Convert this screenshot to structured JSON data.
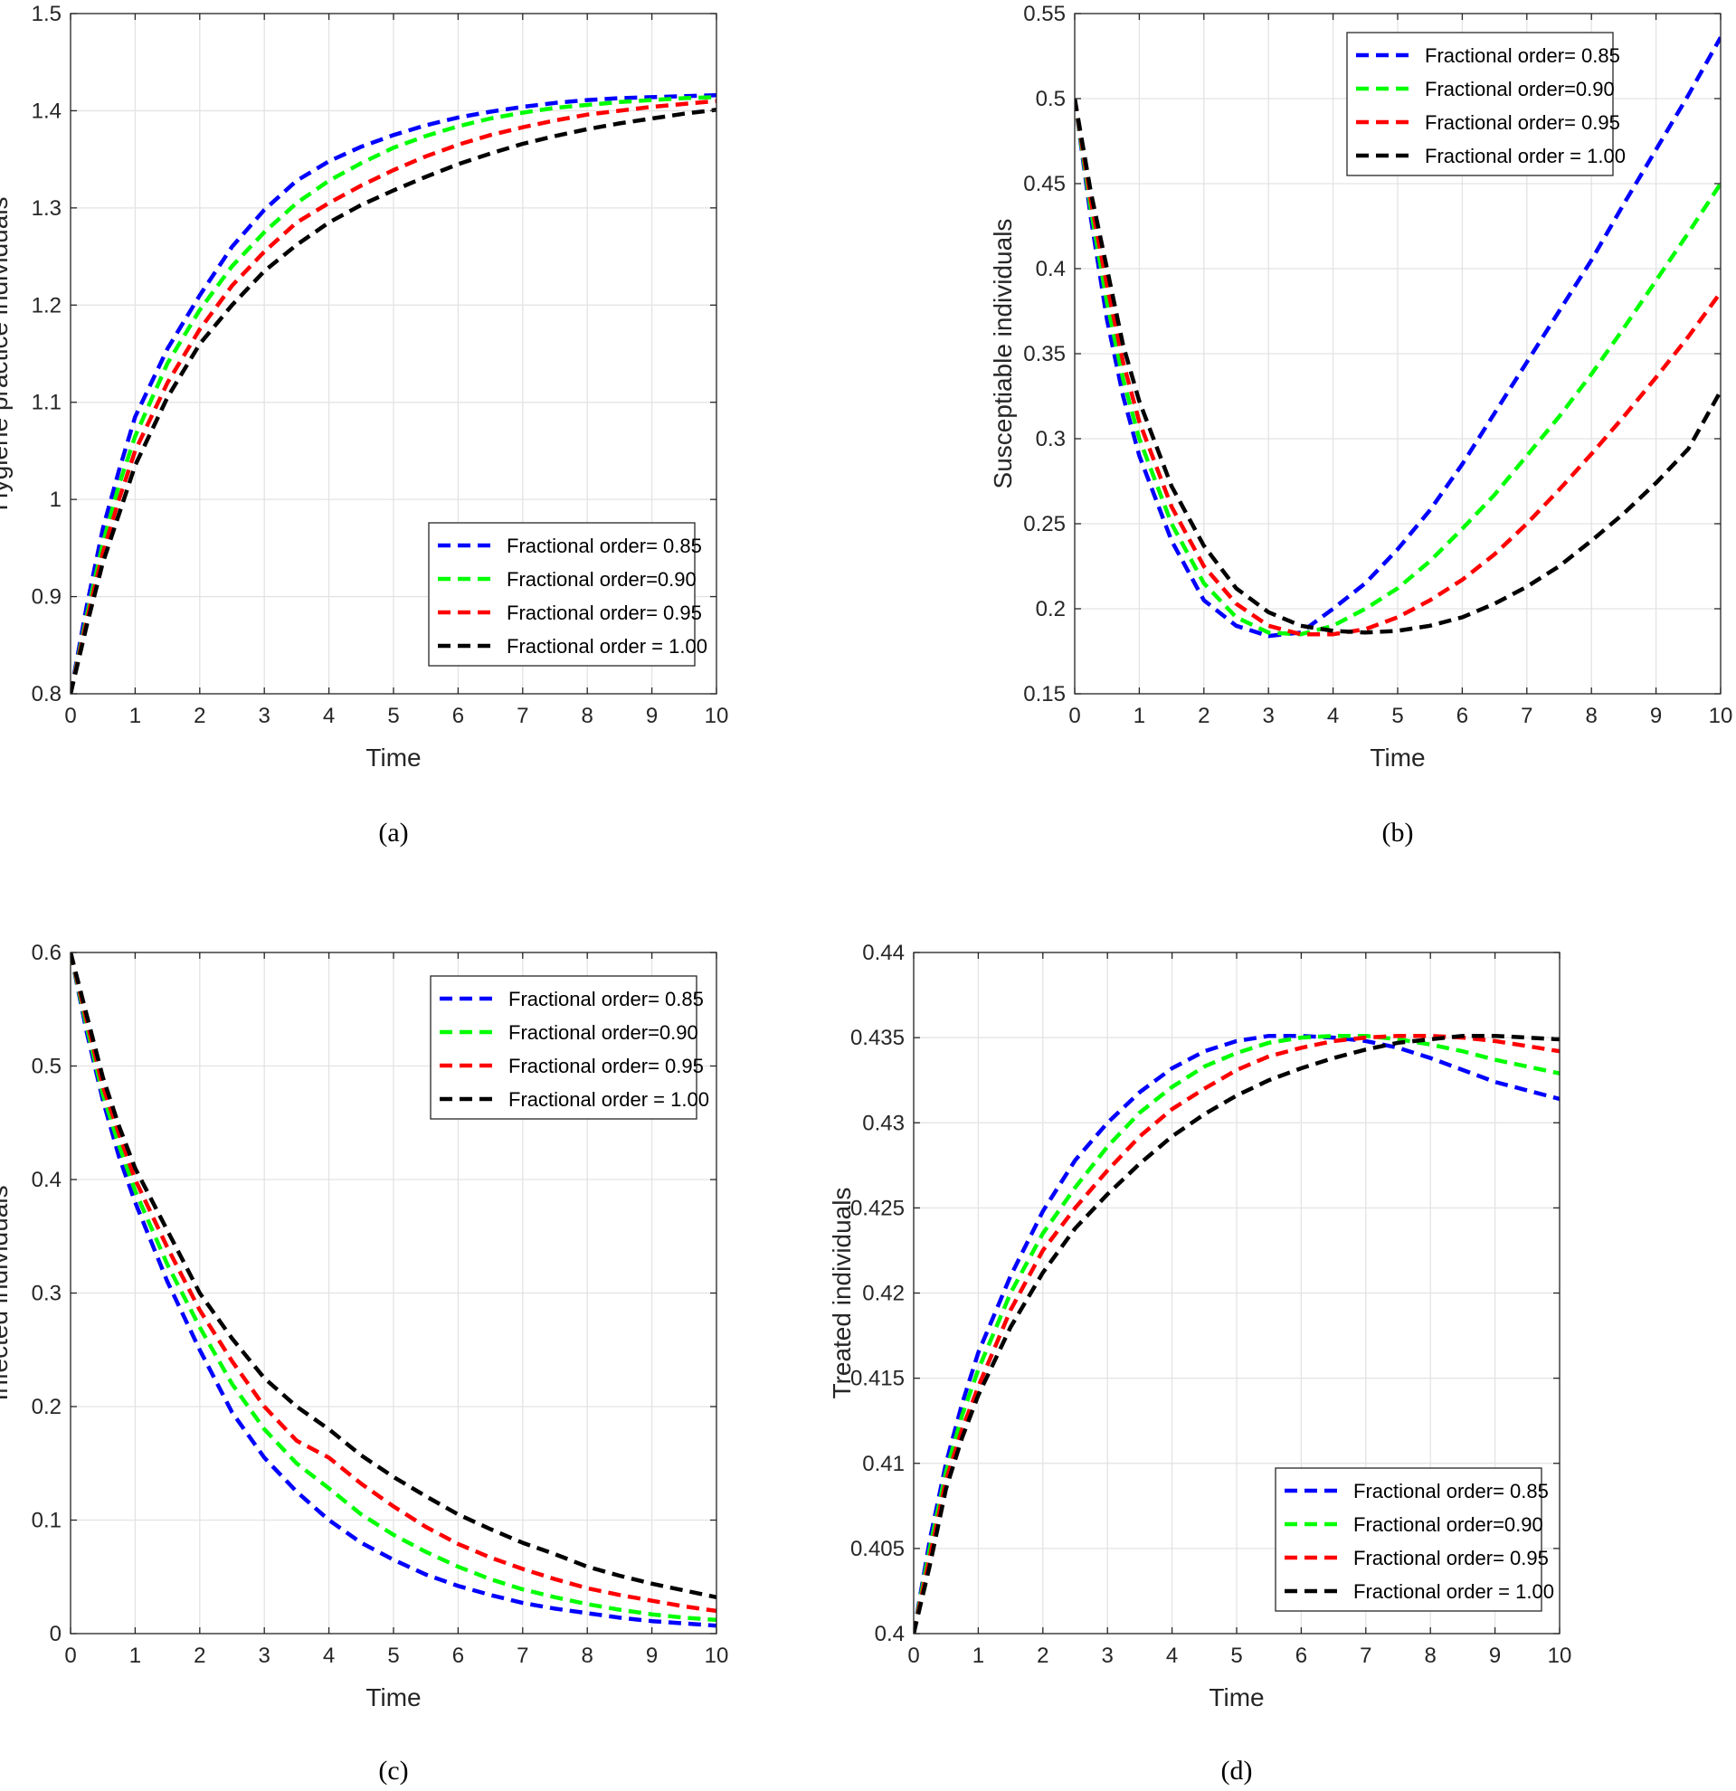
{
  "chart_data": [
    {
      "type": "line",
      "caption": "(a)",
      "xlabel": "Time",
      "ylabel": "Hygiene practice individuals",
      "xlim": [
        0,
        10
      ],
      "ylim": [
        0.8,
        1.5
      ],
      "xticks": [
        "0",
        "1",
        "2",
        "3",
        "4",
        "5",
        "6",
        "7",
        "8",
        "9",
        "10"
      ],
      "yticks": [
        "0.8",
        "0.9",
        "1",
        "1.1",
        "1.2",
        "1.3",
        "1.4",
        "1.5"
      ],
      "grid": true,
      "legend_position": "bottom-right",
      "x": [
        0,
        0.25,
        0.5,
        0.75,
        1,
        1.5,
        2,
        2.5,
        3,
        3.5,
        4,
        4.5,
        5,
        5.5,
        6,
        6.5,
        7,
        7.5,
        8,
        8.5,
        9,
        9.5,
        10
      ],
      "series": [
        {
          "name": "Fractional order= 0.85",
          "color": "#0000ff",
          "values": [
            0.8,
            0.89,
            0.97,
            1.03,
            1.085,
            1.155,
            1.21,
            1.26,
            1.298,
            1.328,
            1.348,
            1.363,
            1.375,
            1.385,
            1.393,
            1.399,
            1.404,
            1.408,
            1.411,
            1.413,
            1.414,
            1.415,
            1.416
          ]
        },
        {
          "name": "Fractional order=0.90",
          "color": "#00ff00",
          "values": [
            0.8,
            0.88,
            0.955,
            1.015,
            1.065,
            1.14,
            1.195,
            1.24,
            1.275,
            1.305,
            1.328,
            1.346,
            1.362,
            1.374,
            1.384,
            1.392,
            1.398,
            1.403,
            1.406,
            1.409,
            1.411,
            1.413,
            1.414
          ]
        },
        {
          "name": "Fractional order= 0.95",
          "color": "#ff0000",
          "values": [
            0.8,
            0.875,
            0.945,
            1.0,
            1.05,
            1.12,
            1.175,
            1.22,
            1.255,
            1.285,
            1.305,
            1.323,
            1.339,
            1.353,
            1.365,
            1.375,
            1.383,
            1.39,
            1.396,
            1.4,
            1.404,
            1.407,
            1.41
          ]
        },
        {
          "name": "Fractional order = 1.00",
          "color": "#000000",
          "values": [
            0.8,
            0.87,
            0.935,
            0.985,
            1.035,
            1.105,
            1.16,
            1.2,
            1.235,
            1.262,
            1.285,
            1.303,
            1.318,
            1.332,
            1.345,
            1.356,
            1.366,
            1.374,
            1.381,
            1.387,
            1.392,
            1.397,
            1.401
          ]
        }
      ]
    },
    {
      "type": "line",
      "caption": "(b)",
      "xlabel": "Time",
      "ylabel": "Susceptiable individuals",
      "xlim": [
        0,
        10
      ],
      "ylim": [
        0.15,
        0.55
      ],
      "xticks": [
        "0",
        "1",
        "2",
        "3",
        "4",
        "5",
        "6",
        "7",
        "8",
        "9",
        "10"
      ],
      "yticks": [
        "0.15",
        "0.2",
        "0.25",
        "0.3",
        "0.35",
        "0.4",
        "0.45",
        "0.5",
        "0.55"
      ],
      "grid": true,
      "legend_position": "top-right",
      "x": [
        0,
        0.25,
        0.5,
        0.75,
        1,
        1.5,
        2,
        2.5,
        3,
        3.5,
        4,
        4.5,
        5,
        5.5,
        6,
        6.5,
        7,
        7.5,
        8,
        8.5,
        9,
        9.5,
        10
      ],
      "series": [
        {
          "name": "Fractional order= 0.85",
          "color": "#0000ff",
          "values": [
            0.5,
            0.43,
            0.37,
            0.325,
            0.29,
            0.24,
            0.205,
            0.19,
            0.184,
            0.186,
            0.2,
            0.215,
            0.235,
            0.258,
            0.285,
            0.315,
            0.345,
            0.375,
            0.405,
            0.438,
            0.47,
            0.502,
            0.536
          ]
        },
        {
          "name": "Fractional order=0.90",
          "color": "#00ff00",
          "values": [
            0.5,
            0.435,
            0.38,
            0.335,
            0.3,
            0.25,
            0.215,
            0.195,
            0.186,
            0.185,
            0.19,
            0.2,
            0.212,
            0.228,
            0.247,
            0.267,
            0.29,
            0.313,
            0.338,
            0.365,
            0.393,
            0.421,
            0.45
          ]
        },
        {
          "name": "Fractional order= 0.95",
          "color": "#ff0000",
          "values": [
            0.5,
            0.44,
            0.39,
            0.345,
            0.31,
            0.26,
            0.225,
            0.203,
            0.19,
            0.185,
            0.185,
            0.188,
            0.195,
            0.205,
            0.217,
            0.232,
            0.25,
            0.27,
            0.291,
            0.313,
            0.336,
            0.36,
            0.386
          ]
        },
        {
          "name": "Fractional order = 1.00",
          "color": "#000000",
          "values": [
            0.5,
            0.445,
            0.4,
            0.355,
            0.322,
            0.272,
            0.237,
            0.212,
            0.198,
            0.19,
            0.187,
            0.186,
            0.187,
            0.19,
            0.195,
            0.203,
            0.213,
            0.225,
            0.24,
            0.256,
            0.274,
            0.294,
            0.328
          ]
        }
      ]
    },
    {
      "type": "line",
      "caption": "(c)",
      "xlabel": "Time",
      "ylabel": "Infected individuals",
      "xlim": [
        0,
        10
      ],
      "ylim": [
        0,
        0.6
      ],
      "xticks": [
        "0",
        "1",
        "2",
        "3",
        "4",
        "5",
        "6",
        "7",
        "8",
        "9",
        "10"
      ],
      "yticks": [
        "0",
        "0.1",
        "0.2",
        "0.3",
        "0.4",
        "0.5",
        "0.6"
      ],
      "grid": true,
      "legend_position": "top-right",
      "x": [
        0,
        0.25,
        0.5,
        0.75,
        1,
        1.5,
        2,
        2.5,
        3,
        3.5,
        4,
        4.5,
        5,
        5.5,
        6,
        6.5,
        7,
        7.5,
        8,
        8.5,
        9,
        9.5,
        10
      ],
      "series": [
        {
          "name": "Fractional order= 0.85",
          "color": "#0000ff",
          "values": [
            0.6,
            0.53,
            0.47,
            0.42,
            0.38,
            0.31,
            0.25,
            0.195,
            0.155,
            0.125,
            0.1,
            0.08,
            0.065,
            0.052,
            0.042,
            0.034,
            0.027,
            0.022,
            0.018,
            0.014,
            0.011,
            0.009,
            0.007
          ]
        },
        {
          "name": "Fractional order=0.90",
          "color": "#00ff00",
          "values": [
            0.6,
            0.535,
            0.475,
            0.43,
            0.39,
            0.325,
            0.27,
            0.22,
            0.18,
            0.15,
            0.128,
            0.105,
            0.087,
            0.072,
            0.059,
            0.048,
            0.039,
            0.032,
            0.026,
            0.021,
            0.017,
            0.014,
            0.012
          ]
        },
        {
          "name": "Fractional order= 0.95",
          "color": "#ff0000",
          "values": [
            0.6,
            0.54,
            0.482,
            0.44,
            0.4,
            0.34,
            0.285,
            0.24,
            0.2,
            0.17,
            0.155,
            0.132,
            0.112,
            0.094,
            0.079,
            0.067,
            0.057,
            0.048,
            0.04,
            0.034,
            0.029,
            0.024,
            0.02
          ]
        },
        {
          "name": "Fractional order = 1.00",
          "color": "#000000",
          "values": [
            0.6,
            0.545,
            0.49,
            0.447,
            0.41,
            0.355,
            0.3,
            0.26,
            0.225,
            0.2,
            0.18,
            0.157,
            0.138,
            0.121,
            0.105,
            0.092,
            0.08,
            0.07,
            0.059,
            0.051,
            0.044,
            0.038,
            0.032
          ]
        }
      ]
    },
    {
      "type": "line",
      "caption": "(d)",
      "xlabel": "Time",
      "ylabel": "Treated individuals",
      "xlim": [
        0,
        10
      ],
      "ylim": [
        0.4,
        0.44
      ],
      "xticks": [
        "0",
        "1",
        "2",
        "3",
        "4",
        "5",
        "6",
        "7",
        "8",
        "9",
        "10"
      ],
      "yticks": [
        "0.4",
        "0.405",
        "0.41",
        "0.415",
        "0.42",
        "0.425",
        "0.43",
        "0.435",
        "0.44"
      ],
      "grid": true,
      "legend_position": "bottom-right",
      "x": [
        0,
        0.25,
        0.5,
        0.75,
        1,
        1.5,
        2,
        2.5,
        3,
        3.5,
        4,
        4.5,
        5,
        5.5,
        6,
        6.5,
        7,
        7.5,
        8,
        8.5,
        9,
        9.5,
        10
      ],
      "series": [
        {
          "name": "Fractional order= 0.85",
          "color": "#0000ff",
          "values": [
            0.4,
            0.4055,
            0.41,
            0.4135,
            0.4165,
            0.421,
            0.4248,
            0.4278,
            0.43,
            0.4318,
            0.4332,
            0.4342,
            0.4348,
            0.4351,
            0.4351,
            0.435,
            0.4348,
            0.4344,
            0.4338,
            0.4331,
            0.4324,
            0.4319,
            0.4314
          ]
        },
        {
          "name": "Fractional order=0.90",
          "color": "#00ff00",
          "values": [
            0.4,
            0.405,
            0.4095,
            0.4128,
            0.4155,
            0.42,
            0.4235,
            0.4262,
            0.4286,
            0.4306,
            0.4321,
            0.4333,
            0.4341,
            0.4347,
            0.435,
            0.4351,
            0.4351,
            0.4349,
            0.4346,
            0.4342,
            0.4337,
            0.4333,
            0.4329
          ]
        },
        {
          "name": "Fractional order= 0.95",
          "color": "#ff0000",
          "values": [
            0.4,
            0.4045,
            0.409,
            0.412,
            0.4145,
            0.419,
            0.4225,
            0.425,
            0.4272,
            0.4292,
            0.4308,
            0.432,
            0.4331,
            0.4339,
            0.4344,
            0.4348,
            0.435,
            0.4351,
            0.4351,
            0.435,
            0.4348,
            0.4345,
            0.4342
          ]
        },
        {
          "name": "Fractional order = 1.00",
          "color": "#000000",
          "values": [
            0.4,
            0.404,
            0.4085,
            0.4115,
            0.414,
            0.418,
            0.4212,
            0.4238,
            0.4258,
            0.4276,
            0.4292,
            0.4305,
            0.4316,
            0.4325,
            0.4332,
            0.4338,
            0.4343,
            0.4347,
            0.4349,
            0.4351,
            0.4351,
            0.435,
            0.4349
          ]
        }
      ]
    }
  ]
}
